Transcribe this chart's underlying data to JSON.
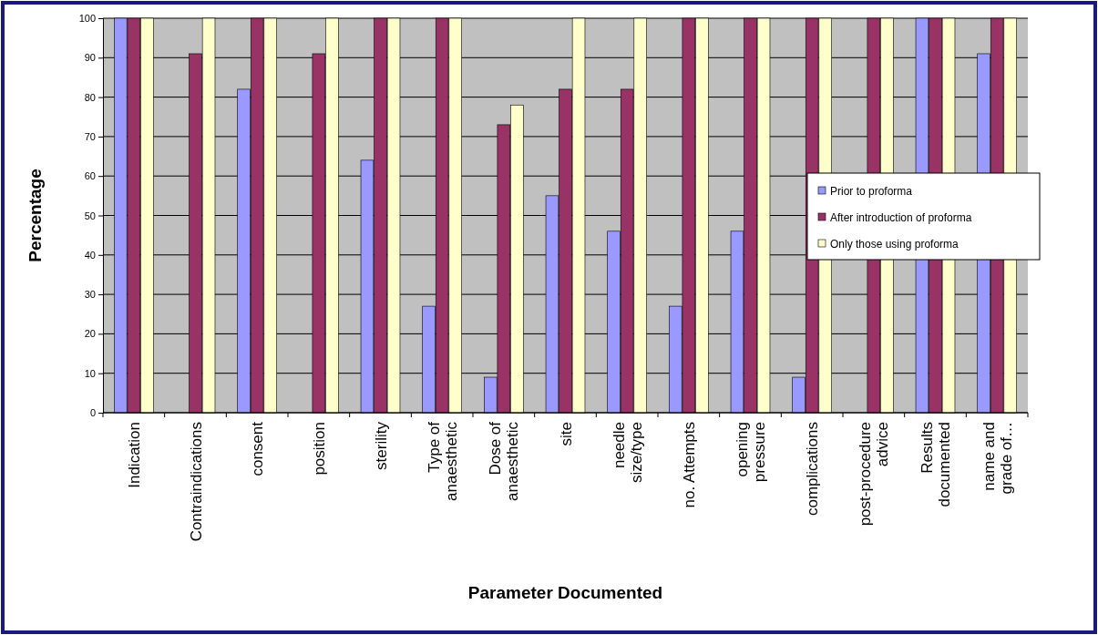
{
  "chart_data": {
    "type": "bar",
    "xlabel": "Parameter Documented",
    "ylabel": "Percentage",
    "categories": [
      "Indication",
      "Contraindications",
      "consent",
      "position",
      "sterility",
      "Type of anaesthetic",
      "Dose of anaesthetic",
      "site",
      "needle size/type",
      "no. Attempts",
      "opening pressure",
      "complications",
      "post-procedure advice",
      "Results documented",
      "name and grade of…"
    ],
    "series": [
      {
        "name": "Prior to proforma",
        "color": "#9999ff",
        "values": [
          100,
          0,
          82,
          0,
          64,
          27,
          9,
          55,
          46,
          27,
          46,
          9,
          0,
          100,
          91
        ]
      },
      {
        "name": "After introduction of proforma",
        "color": "#993366",
        "values": [
          100,
          91,
          100,
          91,
          100,
          100,
          73,
          82,
          82,
          100,
          100,
          100,
          100,
          100,
          100
        ]
      },
      {
        "name": "Only those using proforma",
        "color": "#ffffcc",
        "values": [
          100,
          100,
          100,
          100,
          100,
          100,
          78,
          100,
          100,
          100,
          100,
          100,
          100,
          100,
          100
        ]
      }
    ],
    "ylim": [
      0,
      100
    ],
    "yticks": [
      0,
      10,
      20,
      30,
      40,
      50,
      60,
      70,
      80,
      90,
      100
    ],
    "grid": "y",
    "legend": "right"
  }
}
